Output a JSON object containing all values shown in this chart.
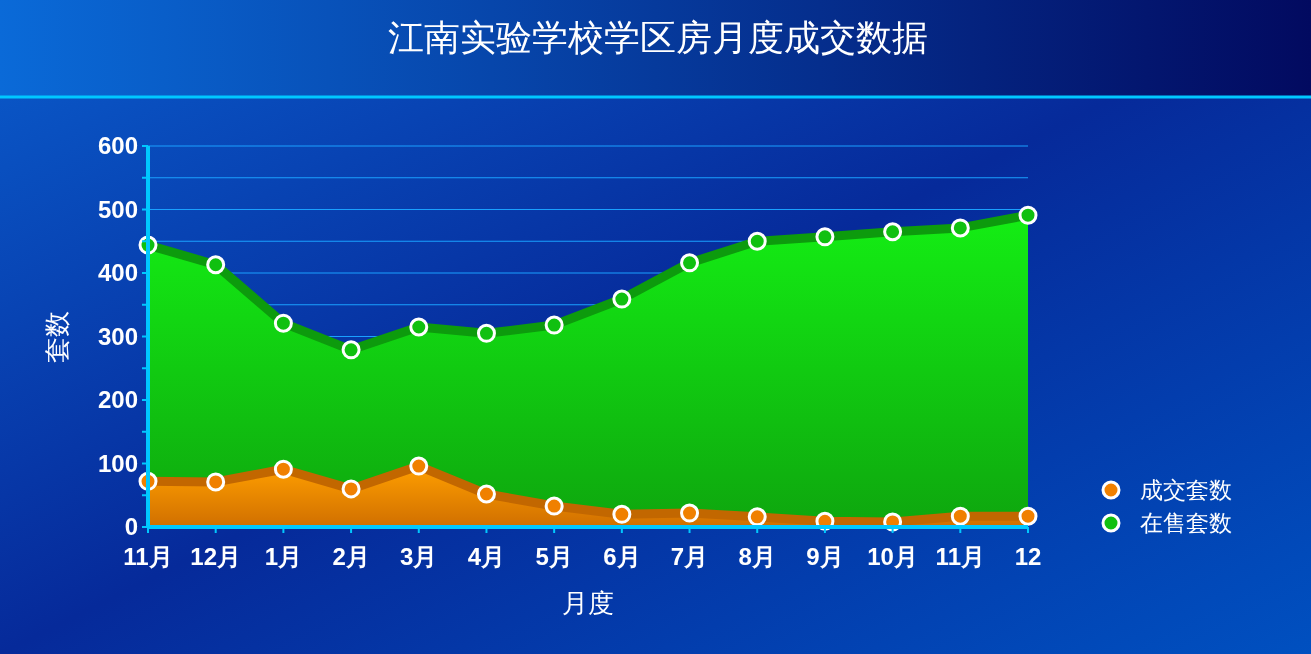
{
  "chart_data": {
    "type": "area",
    "title": "江南实验学校学区房月度成交数据",
    "xlabel": "月度",
    "ylabel": "套数",
    "categories": [
      "11月",
      "12月",
      "1月",
      "2月",
      "3月",
      "4月",
      "5月",
      "6月",
      "7月",
      "8月",
      "9月",
      "10月",
      "11月",
      "12"
    ],
    "series": [
      {
        "name": "成交套数",
        "color": "#f08000",
        "values": [
          72,
          71,
          91,
          60,
          96,
          52,
          33,
          20,
          22,
          16,
          9,
          8,
          17,
          17
        ]
      },
      {
        "name": "在售套数",
        "color": "#10c010",
        "values": [
          444,
          413,
          321,
          279,
          315,
          305,
          318,
          359,
          416,
          450,
          457,
          465,
          471,
          491
        ]
      }
    ],
    "ylim": [
      0,
      600
    ],
    "yticks": [
      0,
      {
        "value": 50,
        "label": null
      },
      100,
      {
        "value": 150,
        "label": null
      },
      200,
      {
        "value": 250,
        "label": null
      },
      300,
      {
        "value": 350,
        "label": null
      },
      400,
      {
        "value": 450,
        "label": null
      },
      500,
      {
        "value": 550,
        "label": null
      },
      600
    ],
    "grid": "y",
    "legend": "right",
    "marker": "circle",
    "line_style": "solid"
  }
}
